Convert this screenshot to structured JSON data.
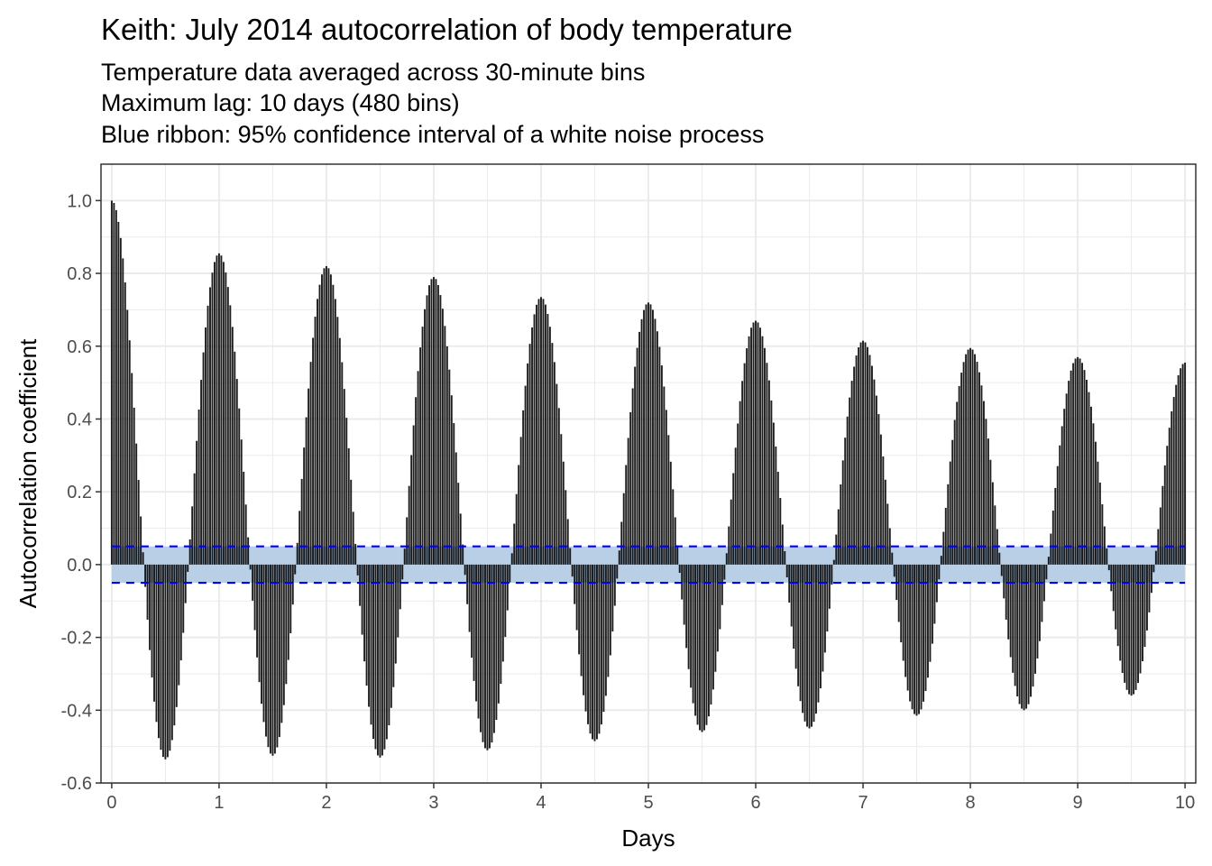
{
  "chart_data": {
    "type": "bar",
    "title": "Keith: July 2014 autocorrelation of body temperature",
    "subtitle": [
      "Temperature data averaged across 30-minute bins",
      "Maximum lag: 10 days (480 bins)",
      "Blue ribbon: 95% confidence interval of a white noise process"
    ],
    "xlabel": "Days",
    "ylabel": "Autocorrelation coefficient",
    "xlim": [
      0,
      10
    ],
    "ylim": [
      -0.6,
      1.0
    ],
    "x_ticks": [
      "0",
      "1",
      "2",
      "3",
      "4",
      "5",
      "6",
      "7",
      "8",
      "9",
      "10"
    ],
    "y_ticks": [
      "-0.6",
      "-0.4",
      "-0.2",
      "0.0",
      "0.2",
      "0.4",
      "0.6",
      "0.8",
      "1.0"
    ],
    "grid": true,
    "bins_per_day": 48,
    "max_lag_bins": 480,
    "confidence_interval": [
      -0.05,
      0.05
    ],
    "daily_peaks": [
      1.0,
      0.855,
      0.82,
      0.79,
      0.735,
      0.72,
      0.67,
      0.615,
      0.595,
      0.57,
      0.555
    ],
    "daily_troughs": [
      -0.535,
      -0.525,
      -0.53,
      -0.51,
      -0.485,
      -0.46,
      -0.45,
      -0.415,
      -0.4,
      -0.36
    ],
    "colors": {
      "bars": "#000000",
      "ribbon": "#b8cfe6",
      "ci_line": "#0000ff",
      "grid": "#ebebeb",
      "panel_border": "#333333"
    }
  }
}
